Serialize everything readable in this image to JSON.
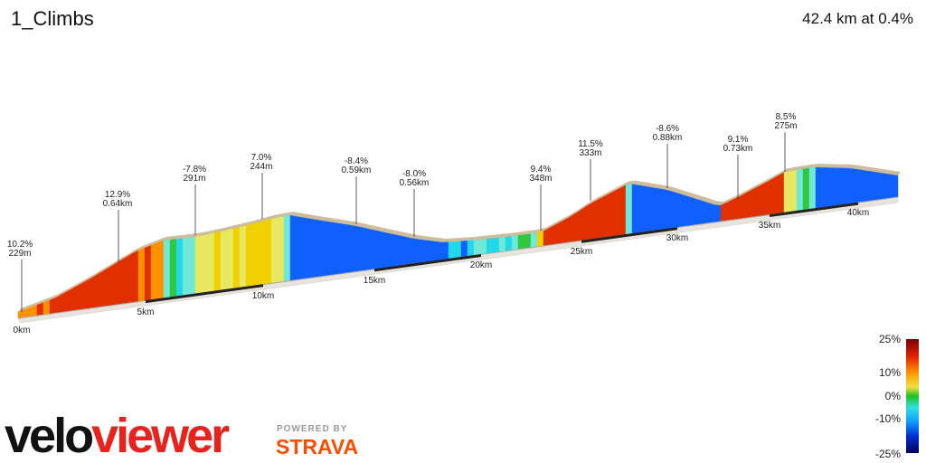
{
  "header": {
    "title": "1_Climbs",
    "summary": "42.4 km at 0.4%"
  },
  "annotations": [
    {
      "grade": "10.2%",
      "length": "229m"
    },
    {
      "grade": "12.9%",
      "length": "0.64km"
    },
    {
      "grade": "-7.8%",
      "length": "291m"
    },
    {
      "grade": "7.0%",
      "length": "244m"
    },
    {
      "grade": "-8.4%",
      "length": "0.59km"
    },
    {
      "grade": "-8.0%",
      "length": "0.56km"
    },
    {
      "grade": "9.4%",
      "length": "348m"
    },
    {
      "grade": "11.5%",
      "length": "333m"
    },
    {
      "grade": "-8.6%",
      "length": "0.88km"
    },
    {
      "grade": "9.1%",
      "length": "0.73km"
    },
    {
      "grade": "8.5%",
      "length": "275m"
    }
  ],
  "distance_labels": [
    "0km",
    "5km",
    "10km",
    "15km",
    "20km",
    "25km",
    "30km",
    "35km",
    "40km"
  ],
  "legend": {
    "labels": [
      "25%",
      "10%",
      "0%",
      "-10%",
      "-25%"
    ]
  },
  "branding": {
    "logo_part1": "velo",
    "logo_part2": "viewer",
    "powered_by": "POWERED BY",
    "partner": "STRAVA"
  }
}
